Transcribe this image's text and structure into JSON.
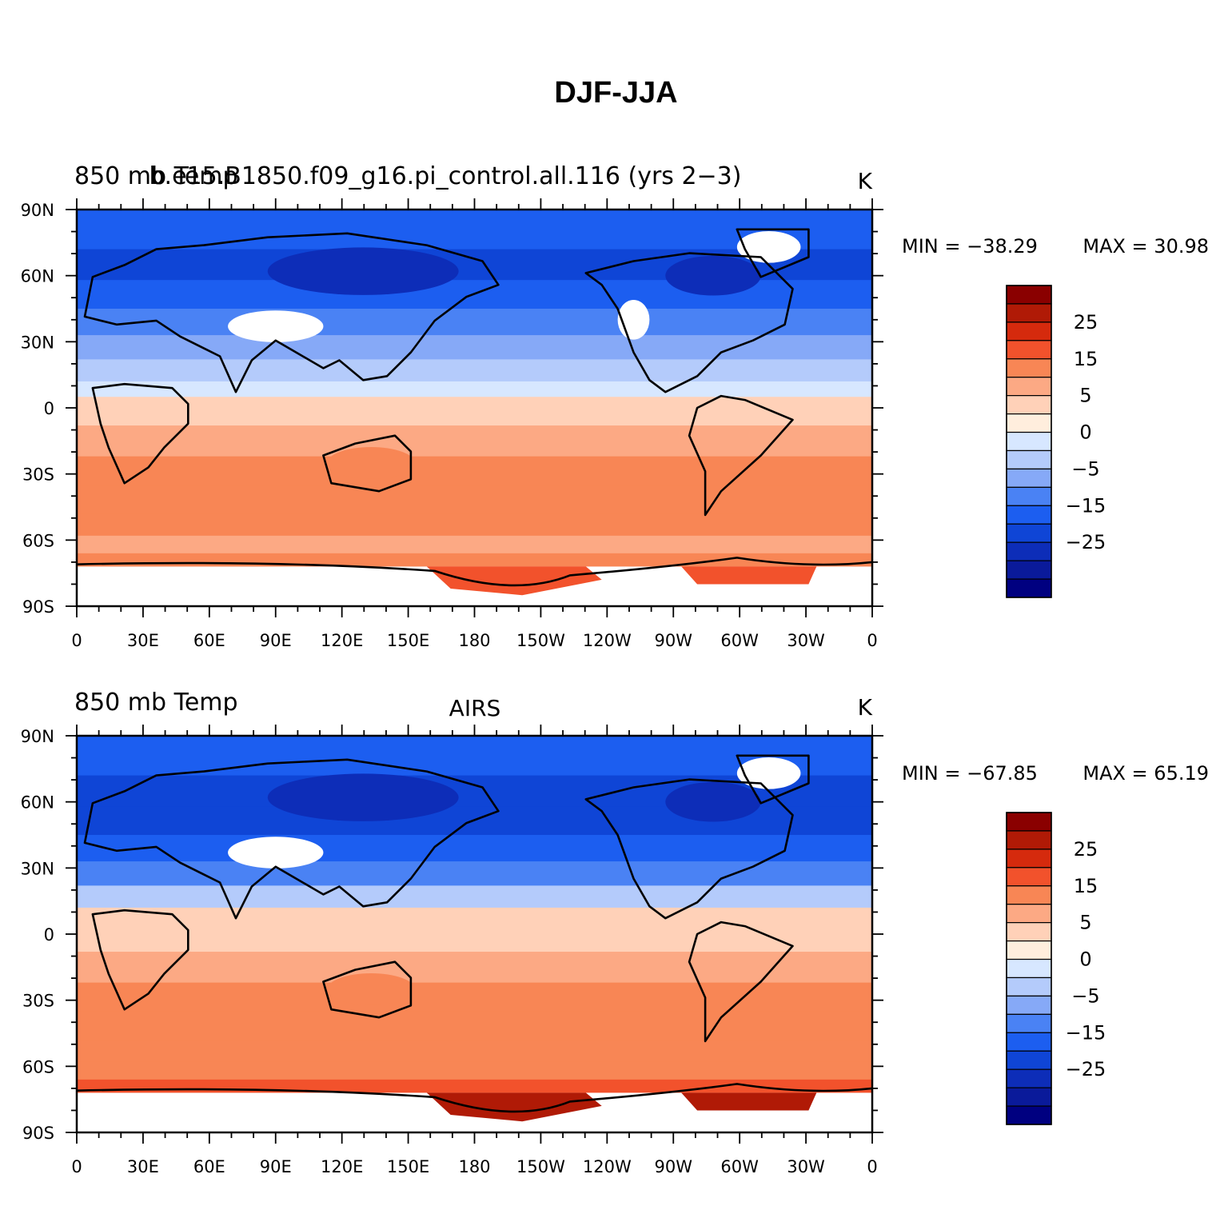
{
  "title": "DJF-JJA",
  "color_scale": {
    "colors": [
      "#000080",
      "#0a1a9a",
      "#0d2db8",
      "#0f45d6",
      "#1c5ef0",
      "#4a82f4",
      "#86a9f7",
      "#b4cbfb",
      "#d7e7ff",
      "#ffeedd",
      "#ffd1b8",
      "#fca984",
      "#f88655",
      "#f2522c",
      "#d52a0d",
      "#b01a06",
      "#8a0000"
    ],
    "tick_labels": [
      "25",
      "15",
      "5",
      "0",
      "−5",
      "−15",
      "−25"
    ]
  },
  "panels": [
    {
      "left_title": "850 mb Temp",
      "center_title": "b.e15.B1850.f09_g16.pi_control.all.116 (yrs 2−3)",
      "units": "K",
      "min_label": "MIN = −38.29",
      "max_label": "MAX =   30.98",
      "lat_labels": [
        "90N",
        "60N",
        "30N",
        "0",
        "30S",
        "60S",
        "90S"
      ],
      "lon_labels": [
        "0",
        "30E",
        "60E",
        "90E",
        "120E",
        "150E",
        "180",
        "150W",
        "120W",
        "90W",
        "60W",
        "30W",
        "0"
      ],
      "bands": [
        {
          "lat": 90,
          "value": -15
        },
        {
          "lat": 72,
          "value": -18
        },
        {
          "lat": 58,
          "value": -15
        },
        {
          "lat": 45,
          "value": -10
        },
        {
          "lat": 33,
          "value": -5
        },
        {
          "lat": 22,
          "value": -3
        },
        {
          "lat": 12,
          "value": -1
        },
        {
          "lat": 5,
          "value": 1
        },
        {
          "lat": -8,
          "value": 3
        },
        {
          "lat": -22,
          "value": 6
        },
        {
          "lat": -35,
          "value": 8
        },
        {
          "lat": -48,
          "value": 6
        },
        {
          "lat": -58,
          "value": 4
        },
        {
          "lat": -66,
          "value": 7
        },
        {
          "lat": -72,
          "value": 10
        }
      ]
    },
    {
      "left_title": "850 mb Temp",
      "center_title": "AIRS",
      "units": "K",
      "min_label": "MIN = −67.85",
      "max_label": "MAX =   65.19",
      "lat_labels": [
        "90N",
        "60N",
        "30N",
        "0",
        "30S",
        "60S",
        "90S"
      ],
      "lon_labels": [
        "0",
        "30E",
        "60E",
        "90E",
        "120E",
        "150E",
        "180",
        "150W",
        "120W",
        "90W",
        "60W",
        "30W",
        "0"
      ],
      "bands": [
        {
          "lat": 90,
          "value": -15
        },
        {
          "lat": 72,
          "value": -20
        },
        {
          "lat": 58,
          "value": -17
        },
        {
          "lat": 45,
          "value": -12
        },
        {
          "lat": 33,
          "value": -6
        },
        {
          "lat": 22,
          "value": -3
        },
        {
          "lat": 12,
          "value": 1
        },
        {
          "lat": 3,
          "value": 2
        },
        {
          "lat": -8,
          "value": 3
        },
        {
          "lat": -22,
          "value": 6
        },
        {
          "lat": -35,
          "value": 7
        },
        {
          "lat": -48,
          "value": 5
        },
        {
          "lat": -58,
          "value": 7
        },
        {
          "lat": -66,
          "value": 10
        },
        {
          "lat": -72,
          "value": 14
        }
      ]
    }
  ]
}
